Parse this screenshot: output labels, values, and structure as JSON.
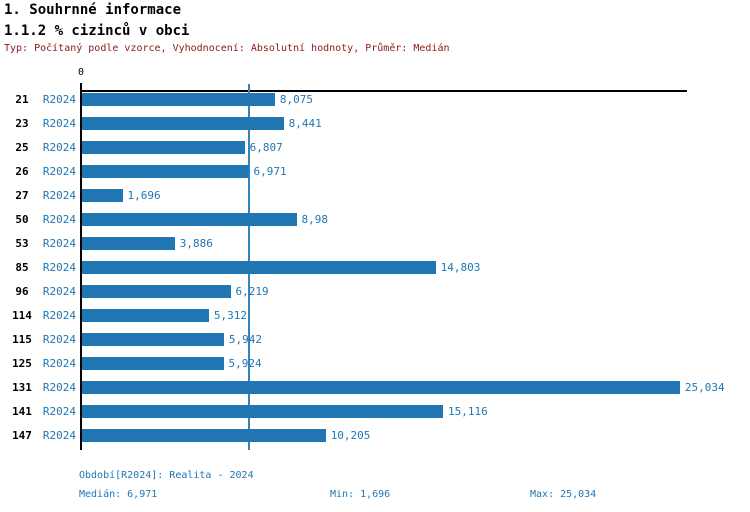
{
  "header": {
    "section_title": "1. Souhrnné informace",
    "indicator_title": "1.1.2 % cizinců v obci",
    "meta": "Typ: Počítaný podle vzorce, Vyhodnocení: Absolutní hodnoty, Průměr: Medián"
  },
  "chart_data": {
    "type": "bar",
    "orientation": "horizontal",
    "title": "1.1.2 % cizinců v obci",
    "series_label": "R2024",
    "categories": [
      "21",
      "23",
      "25",
      "26",
      "27",
      "50",
      "53",
      "85",
      "96",
      "114",
      "115",
      "125",
      "131",
      "141",
      "147"
    ],
    "values": [
      8.075,
      8.441,
      6.807,
      6.971,
      1.696,
      8.98,
      3.886,
      14.803,
      6.219,
      5.312,
      5.942,
      5.924,
      25.034,
      15.116,
      10.205
    ],
    "value_labels": [
      "8,075",
      "8,441",
      "6,807",
      "6,971",
      "1,696",
      "8,98",
      "3,886",
      "14,803",
      "6,219",
      "5,312",
      "5,942",
      "5,924",
      "25,034",
      "15,116",
      "10,205"
    ],
    "origin_tick_label": "0",
    "xlim": [
      0,
      25.33
    ],
    "median_value": 6.971,
    "grid": false,
    "legend_position": "none",
    "bar_color": "#2077b4",
    "label_color": "#1f77b4"
  },
  "footer": {
    "period": "Období[R2024]: Realita - 2024",
    "median": "Medián: 6,971",
    "min": "Min: 1,696",
    "max": "Max: 25,034"
  }
}
